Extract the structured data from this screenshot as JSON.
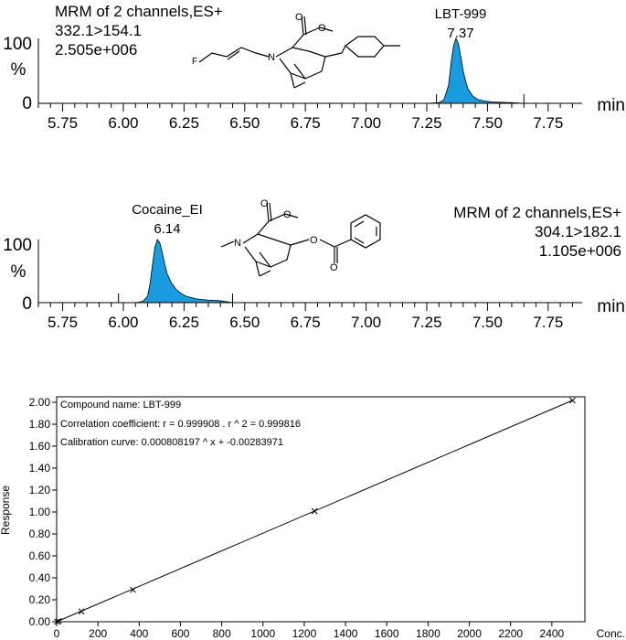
{
  "chart_data": [
    {
      "type": "line",
      "title": "MRM of 2 channels,ES+",
      "transition": "332.1>154.1",
      "intensity": "2.505e+006",
      "peak_label": "LBT-999",
      "peak_rt_label": "7.37",
      "peak_rt": 7.37,
      "xlabel": "min",
      "ylabel": "%",
      "xlim": [
        5.65,
        7.89
      ],
      "ylim": [
        0,
        100
      ],
      "x_ticks": [
        "5.75",
        "6.00",
        "6.25",
        "6.50",
        "6.75",
        "7.00",
        "7.25",
        "7.50",
        "7.75"
      ],
      "y_ticks": [
        "0",
        "100"
      ],
      "integration_markers": [
        7.29,
        7.65
      ],
      "fill_color": "#1a9be0",
      "series": [
        {
          "x": [
            5.65,
            7.25,
            7.3,
            7.32,
            7.34,
            7.35,
            7.36,
            7.37,
            7.38,
            7.39,
            7.4,
            7.41,
            7.42,
            7.44,
            7.46,
            7.48,
            7.5,
            7.52,
            7.55,
            7.6,
            7.65,
            7.89
          ],
          "values": [
            0,
            0,
            1,
            5,
            28,
            62,
            88,
            100,
            92,
            72,
            50,
            34,
            22,
            11,
            6,
            4,
            3,
            2,
            1.5,
            1,
            0,
            0
          ]
        }
      ]
    },
    {
      "type": "line",
      "title": "MRM of 2 channels,ES+",
      "transition": "304.1>182.1",
      "intensity": "1.105e+006",
      "peak_label": "Cocaine_EI",
      "peak_rt_label": "6.14",
      "peak_rt": 6.14,
      "xlabel": "min",
      "ylabel": "%",
      "xlim": [
        5.65,
        7.89
      ],
      "ylim": [
        0,
        100
      ],
      "x_ticks": [
        "5.75",
        "6.00",
        "6.25",
        "6.50",
        "6.75",
        "7.00",
        "7.25",
        "7.50",
        "7.75"
      ],
      "y_ticks": [
        "0",
        "100"
      ],
      "integration_markers": [
        5.98,
        6.45
      ],
      "fill_color": "#1a9be0",
      "series": [
        {
          "x": [
            5.65,
            6.05,
            6.08,
            6.1,
            6.11,
            6.12,
            6.13,
            6.14,
            6.15,
            6.16,
            6.17,
            6.18,
            6.2,
            6.22,
            6.24,
            6.26,
            6.3,
            6.35,
            6.4,
            6.45,
            7.89
          ],
          "values": [
            0,
            0,
            2,
            10,
            30,
            60,
            88,
            100,
            95,
            80,
            62,
            46,
            30,
            20,
            14,
            10,
            6,
            4,
            3,
            0,
            0
          ]
        }
      ]
    },
    {
      "type": "scatter",
      "compound_label": "Compound name: LBT-999",
      "correlation_label": "Correlation coefficient: r = 0.999908 . r ^ 2 = 0.999816",
      "curve_label": "Calibration curve: 0.000808197 ^ x + -0.00283971",
      "slope": 0.000808197,
      "intercept": -0.00283971,
      "xlabel": "Conc.",
      "ylabel": "Response",
      "xlim": [
        0,
        2560
      ],
      "ylim": [
        0,
        2.05
      ],
      "x_ticks": [
        "0",
        "200",
        "400",
        "600",
        "800",
        "1000",
        "1200",
        "1400",
        "1600",
        "1800",
        "2000",
        "2200",
        "2400"
      ],
      "y_ticks": [
        "0.00",
        "0.20",
        "0.40",
        "0.60",
        "0.80",
        "1.00",
        "1.20",
        "1.40",
        "1.60",
        "1.80",
        "2.00"
      ],
      "grid": false,
      "series": [
        {
          "x": [
            2.5,
            10,
            120,
            370,
            1250,
            2500
          ],
          "values": [
            0.0,
            0.005,
            0.094,
            0.29,
            1.008,
            2.017
          ]
        }
      ]
    }
  ]
}
